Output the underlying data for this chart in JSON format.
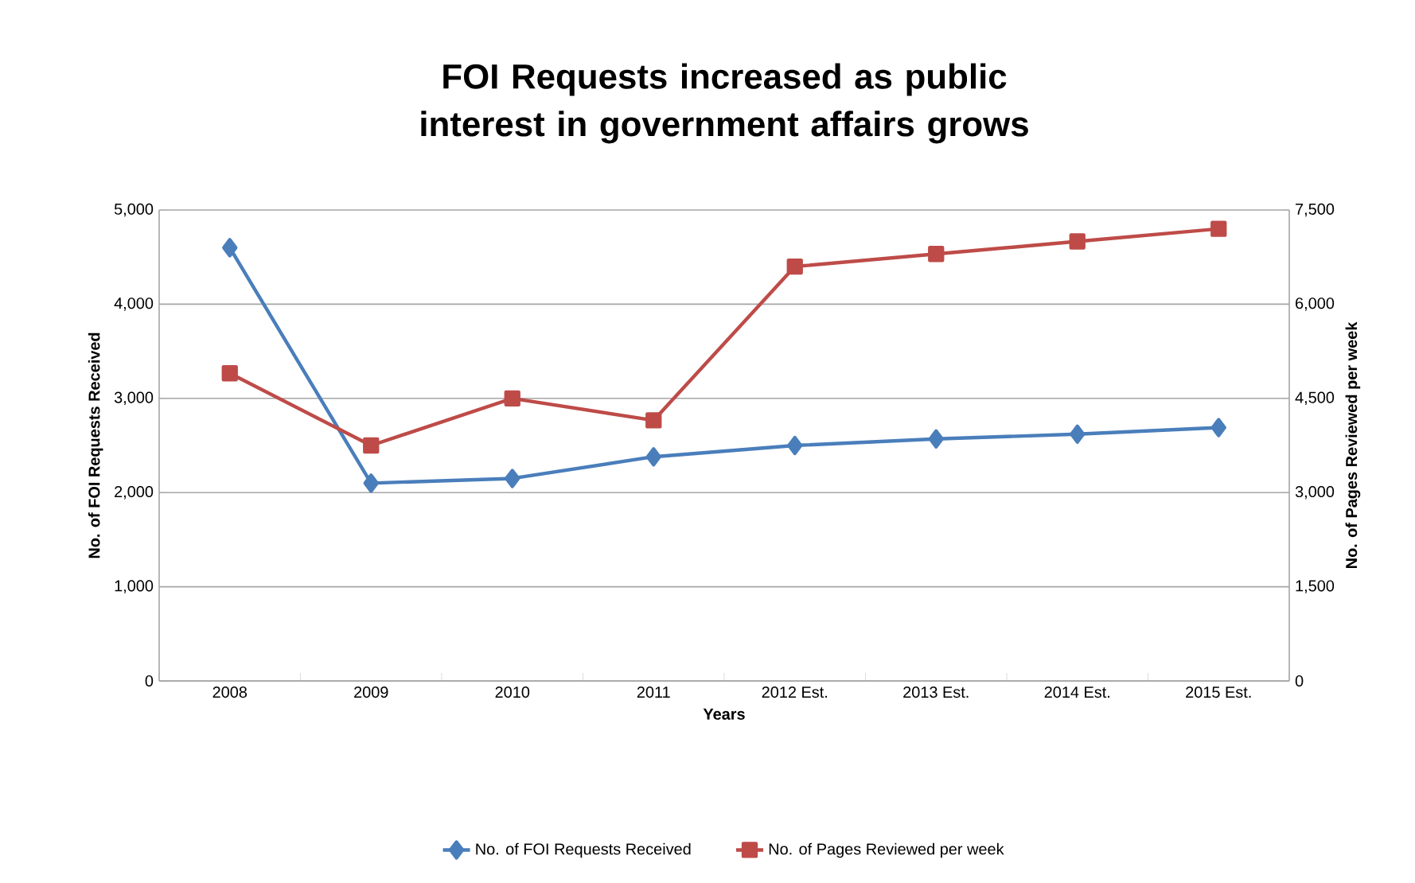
{
  "chart_data": {
    "type": "line",
    "title": "FOI Requests increased as public interest in government affairs grows",
    "xlabel": "Years",
    "ylabel": "No. of FOI Requests Received",
    "y2label": "No.  of Pages Reviewed per week",
    "categories": [
      "2008",
      "2009",
      "2010",
      "2011",
      "2012 Est.",
      "2013 Est.",
      "2014 Est.",
      "2015 Est."
    ],
    "series": [
      {
        "name": "No. of FOI Requests Received",
        "color": "#4a7ebb",
        "marker": "diamond",
        "values": [
          4600,
          2100,
          2150,
          2380,
          2500,
          2570,
          2620,
          2690
        ]
      },
      {
        "name": "No. of Pages Reviewed per week",
        "color": "#be4b48",
        "marker": "square",
        "axis": "y2",
        "values": [
          4900,
          3750,
          4500,
          4150,
          6600,
          6800,
          7000,
          7200
        ]
      }
    ],
    "ylim": [
      0,
      5000
    ],
    "yticks": [
      {
        "value": 0,
        "label": "0"
      },
      {
        "value": 1000,
        "label": "1,000"
      },
      {
        "value": 2000,
        "label": "2,000"
      },
      {
        "value": 3000,
        "label": "3,000"
      },
      {
        "value": 4000,
        "label": "4,000"
      },
      {
        "value": 5000,
        "label": "5,000"
      }
    ],
    "y2lim": [
      0,
      7500
    ],
    "y2ticks": [
      {
        "value": 0,
        "label": "0"
      },
      {
        "value": 1500,
        "label": "1,500"
      },
      {
        "value": 3000,
        "label": "3,000"
      },
      {
        "value": 4500,
        "label": "4,500"
      },
      {
        "value": 6000,
        "label": "6,000"
      },
      {
        "value": 7500,
        "label": "7,500"
      }
    ],
    "grid": "y",
    "legend": "bottom",
    "line_style": "solid"
  }
}
